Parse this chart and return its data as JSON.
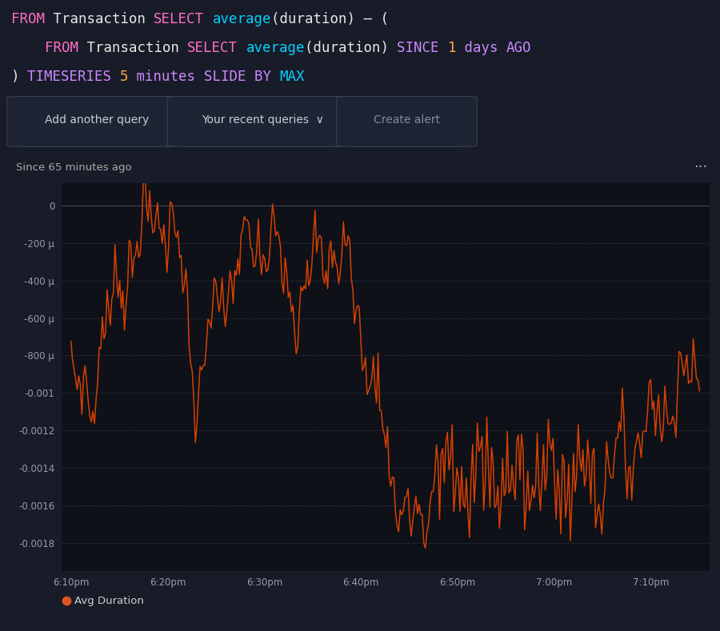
{
  "bg_color": "#181c28",
  "bg_chart": "#0e1118",
  "query_line1_parts": [
    {
      "text": "FROM",
      "color": "#ff6ec7"
    },
    {
      "text": " Transaction ",
      "color": "#e8e8e8"
    },
    {
      "text": "SELECT",
      "color": "#ff6ec7"
    },
    {
      "text": " ",
      "color": "#e8e8e8"
    },
    {
      "text": "average",
      "color": "#00cfff"
    },
    {
      "text": "(duration) – (",
      "color": "#e8e8e8"
    }
  ],
  "query_line2_parts": [
    {
      "text": "    FROM",
      "color": "#ff6ec7"
    },
    {
      "text": " Transaction ",
      "color": "#e8e8e8"
    },
    {
      "text": "SELECT",
      "color": "#ff6ec7"
    },
    {
      "text": " ",
      "color": "#e8e8e8"
    },
    {
      "text": "average",
      "color": "#00cfff"
    },
    {
      "text": "(duration) ",
      "color": "#e8e8e8"
    },
    {
      "text": "SINCE ",
      "color": "#cc88ff"
    },
    {
      "text": "1",
      "color": "#ffaa44"
    },
    {
      "text": " days ",
      "color": "#cc88ff"
    },
    {
      "text": "AGO",
      "color": "#cc88ff"
    }
  ],
  "query_line3_parts": [
    {
      "text": ") ",
      "color": "#e8e8e8"
    },
    {
      "text": "TIMESERIES ",
      "color": "#cc88ff"
    },
    {
      "text": "5",
      "color": "#ffaa44"
    },
    {
      "text": " minutes ",
      "color": "#cc88ff"
    },
    {
      "text": "SLIDE ",
      "color": "#cc88ff"
    },
    {
      "text": "BY ",
      "color": "#cc88ff"
    },
    {
      "text": "MAX",
      "color": "#00cfff"
    }
  ],
  "subtitle": "Since 65 minutes ago",
  "xtick_labels": [
    "6:10pm",
    "6:20pm",
    "6:30pm",
    "6:40pm",
    "6:50pm",
    "7:00pm",
    "7:10pm"
  ],
  "ytick_vals": [
    0,
    -0.0002,
    -0.0004,
    -0.0006,
    -0.0008,
    -0.001,
    -0.0012,
    -0.0014,
    -0.0016,
    -0.0018
  ],
  "ytick_labels": [
    "0",
    "-200 μ",
    "-400 μ",
    "-600 μ",
    "-800 μ",
    "-0.001",
    "-0.0012",
    "-0.0014",
    "-0.0016",
    "-0.0018"
  ],
  "line_color": "#d44000",
  "grid_color": "#252d3d",
  "legend_label": "Avg Duration",
  "legend_dot_color": "#e05520",
  "btn_bg": "#1e2433",
  "btn_border": "#3a3f52",
  "btn_text_color": "#c8ccd8",
  "separator_color": "#2a2f42"
}
